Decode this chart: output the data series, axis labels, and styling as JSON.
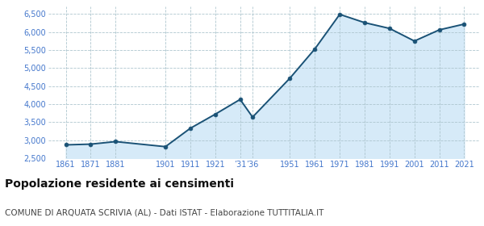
{
  "years": [
    1861,
    1871,
    1881,
    1901,
    1911,
    1921,
    1931,
    1936,
    1951,
    1961,
    1971,
    1981,
    1991,
    2001,
    2011,
    2021
  ],
  "population": [
    2870,
    2890,
    2960,
    2820,
    3330,
    3720,
    4130,
    3640,
    4720,
    5530,
    6490,
    6260,
    6100,
    5750,
    6060,
    6220
  ],
  "line_color": "#1a5276",
  "fill_color": "#d6eaf8",
  "marker_color": "#1a5276",
  "background_color": "#ffffff",
  "grid_color": "#aec6cf",
  "title": "Popolazione residente ai censimenti",
  "subtitle": "COMUNE DI ARQUATA SCRIVIA (AL) - Dati ISTAT - Elaborazione TUTTITALIA.IT",
  "ylim": [
    2500,
    6700
  ],
  "yticks": [
    2500,
    3000,
    3500,
    4000,
    4500,
    5000,
    5500,
    6000,
    6500
  ],
  "title_fontsize": 10,
  "subtitle_fontsize": 7.5,
  "tick_color": "#4477cc",
  "tick_fontsize": 7
}
